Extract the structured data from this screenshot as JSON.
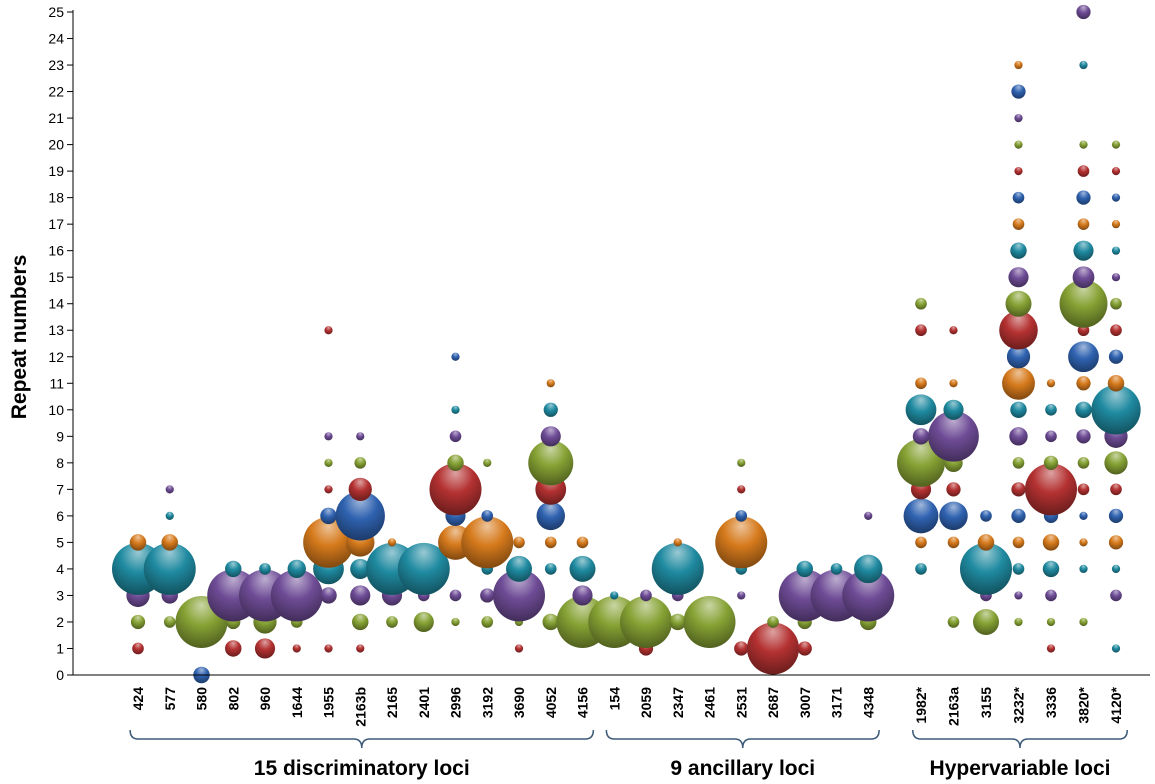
{
  "chart_data": {
    "type": "scatter",
    "subtype": "bubble",
    "ylabel": "Repeat numbers",
    "ylim": [
      0,
      25
    ],
    "yticks": [
      0,
      1,
      2,
      3,
      4,
      5,
      6,
      7,
      8,
      9,
      10,
      11,
      12,
      13,
      14,
      15,
      16,
      17,
      18,
      19,
      20,
      21,
      22,
      23,
      24,
      25
    ],
    "grid": false,
    "legend": "none",
    "palette": {
      "teal": "#1f8aa0",
      "orange": "#d67a1c",
      "purple": "#6e4c96",
      "green": "#86a234",
      "red": "#b43131",
      "blue": "#2f62b0"
    },
    "groups": [
      {
        "label": "15 discriminatory loci",
        "loci": [
          "424",
          "577",
          "580",
          "802",
          "960",
          "1644",
          "1955",
          "2163b",
          "2165",
          "2401",
          "2996",
          "3192",
          "3690",
          "4052",
          "4156"
        ]
      },
      {
        "label": "9 ancillary loci",
        "loci": [
          "154",
          "2059",
          "2347",
          "2461",
          "2531",
          "2687",
          "3007",
          "3171",
          "4348"
        ]
      },
      {
        "label": "Hypervariable loci",
        "loci": [
          "1982*",
          "2163a",
          "3155",
          "3232*",
          "3336",
          "3820*",
          "4120*"
        ]
      }
    ],
    "loci": [
      {
        "name": "424",
        "points": [
          [
            1,
            2,
            "red"
          ],
          [
            2,
            3,
            "green"
          ],
          [
            3,
            8,
            "purple"
          ],
          [
            4,
            40,
            "teal"
          ],
          [
            5,
            4,
            "orange"
          ]
        ]
      },
      {
        "name": "577",
        "points": [
          [
            2,
            2,
            "green"
          ],
          [
            3,
            4,
            "purple"
          ],
          [
            4,
            40,
            "teal"
          ],
          [
            5,
            4,
            "orange"
          ],
          [
            6,
            1,
            "teal"
          ],
          [
            7,
            1,
            "purple"
          ]
        ]
      },
      {
        "name": "580",
        "points": [
          [
            0,
            4,
            "blue"
          ],
          [
            2,
            40,
            "green"
          ]
        ]
      },
      {
        "name": "802",
        "points": [
          [
            1,
            4,
            "red"
          ],
          [
            2,
            3,
            "green"
          ],
          [
            3,
            40,
            "purple"
          ],
          [
            4,
            4,
            "teal"
          ]
        ]
      },
      {
        "name": "960",
        "points": [
          [
            1,
            6,
            "red"
          ],
          [
            2,
            8,
            "green"
          ],
          [
            3,
            40,
            "purple"
          ],
          [
            4,
            2,
            "teal"
          ]
        ]
      },
      {
        "name": "1644",
        "points": [
          [
            1,
            1,
            "red"
          ],
          [
            2,
            2,
            "green"
          ],
          [
            3,
            40,
            "purple"
          ],
          [
            4,
            5,
            "teal"
          ]
        ]
      },
      {
        "name": "1955",
        "points": [
          [
            1,
            1,
            "red"
          ],
          [
            3,
            4,
            "purple"
          ],
          [
            4,
            14,
            "teal"
          ],
          [
            5,
            38,
            "orange"
          ],
          [
            6,
            4,
            "blue"
          ],
          [
            7,
            1,
            "red"
          ],
          [
            8,
            1,
            "green"
          ],
          [
            9,
            1,
            "purple"
          ],
          [
            13,
            1,
            "red"
          ]
        ]
      },
      {
        "name": "2163b",
        "points": [
          [
            1,
            1,
            "red"
          ],
          [
            2,
            4,
            "green"
          ],
          [
            3,
            6,
            "purple"
          ],
          [
            4,
            6,
            "teal"
          ],
          [
            5,
            12,
            "orange"
          ],
          [
            6,
            36,
            "blue"
          ],
          [
            7,
            8,
            "red"
          ],
          [
            8,
            2,
            "green"
          ],
          [
            9,
            1,
            "purple"
          ]
        ]
      },
      {
        "name": "2165",
        "points": [
          [
            2,
            2,
            "green"
          ],
          [
            3,
            6,
            "purple"
          ],
          [
            4,
            40,
            "teal"
          ],
          [
            5,
            1,
            "orange"
          ]
        ]
      },
      {
        "name": "2401",
        "points": [
          [
            2,
            6,
            "green"
          ],
          [
            3,
            2,
            "purple"
          ],
          [
            4,
            40,
            "teal"
          ]
        ]
      },
      {
        "name": "2996",
        "points": [
          [
            2,
            1,
            "green"
          ],
          [
            3,
            2,
            "purple"
          ],
          [
            5,
            18,
            "orange"
          ],
          [
            6,
            6,
            "blue"
          ],
          [
            7,
            40,
            "red"
          ],
          [
            8,
            4,
            "green"
          ],
          [
            9,
            2,
            "purple"
          ],
          [
            10,
            1,
            "teal"
          ],
          [
            12,
            1,
            "blue"
          ]
        ]
      },
      {
        "name": "3192",
        "points": [
          [
            2,
            2,
            "green"
          ],
          [
            3,
            3,
            "purple"
          ],
          [
            4,
            2,
            "teal"
          ],
          [
            5,
            40,
            "orange"
          ],
          [
            6,
            2,
            "blue"
          ],
          [
            8,
            1,
            "green"
          ]
        ]
      },
      {
        "name": "3690",
        "points": [
          [
            1,
            1,
            "red"
          ],
          [
            2,
            1,
            "green"
          ],
          [
            3,
            40,
            "purple"
          ],
          [
            4,
            10,
            "teal"
          ],
          [
            5,
            2,
            "orange"
          ]
        ]
      },
      {
        "name": "4052",
        "points": [
          [
            2,
            4,
            "green"
          ],
          [
            4,
            2,
            "teal"
          ],
          [
            5,
            2,
            "orange"
          ],
          [
            6,
            12,
            "blue"
          ],
          [
            7,
            14,
            "red"
          ],
          [
            8,
            30,
            "green"
          ],
          [
            9,
            6,
            "purple"
          ],
          [
            10,
            3,
            "teal"
          ],
          [
            11,
            1,
            "orange"
          ]
        ]
      },
      {
        "name": "4156",
        "points": [
          [
            2,
            40,
            "green"
          ],
          [
            3,
            6,
            "purple"
          ],
          [
            4,
            10,
            "teal"
          ],
          [
            5,
            2,
            "orange"
          ]
        ]
      },
      {
        "name": "154",
        "points": [
          [
            2,
            40,
            "green"
          ],
          [
            3,
            1,
            "teal"
          ]
        ]
      },
      {
        "name": "2059",
        "points": [
          [
            1,
            3,
            "red"
          ],
          [
            2,
            40,
            "green"
          ],
          [
            3,
            2,
            "purple"
          ]
        ]
      },
      {
        "name": "2347",
        "points": [
          [
            2,
            4,
            "green"
          ],
          [
            3,
            2,
            "purple"
          ],
          [
            4,
            40,
            "teal"
          ],
          [
            5,
            1,
            "orange"
          ]
        ]
      },
      {
        "name": "2461",
        "points": [
          [
            2,
            40,
            "green"
          ]
        ]
      },
      {
        "name": "2531",
        "points": [
          [
            1,
            3,
            "red"
          ],
          [
            3,
            1,
            "purple"
          ],
          [
            4,
            2,
            "teal"
          ],
          [
            5,
            40,
            "orange"
          ],
          [
            6,
            2,
            "blue"
          ],
          [
            7,
            1,
            "red"
          ],
          [
            8,
            1,
            "green"
          ]
        ]
      },
      {
        "name": "2687",
        "points": [
          [
            1,
            40,
            "red"
          ],
          [
            2,
            2,
            "green"
          ]
        ]
      },
      {
        "name": "3007",
        "points": [
          [
            1,
            3,
            "red"
          ],
          [
            2,
            3,
            "green"
          ],
          [
            3,
            40,
            "purple"
          ],
          [
            4,
            4,
            "teal"
          ]
        ]
      },
      {
        "name": "3171",
        "points": [
          [
            3,
            40,
            "purple"
          ],
          [
            4,
            2,
            "teal"
          ]
        ]
      },
      {
        "name": "4348",
        "points": [
          [
            2,
            4,
            "green"
          ],
          [
            3,
            40,
            "purple"
          ],
          [
            4,
            12,
            "teal"
          ],
          [
            6,
            1,
            "purple"
          ]
        ]
      },
      {
        "name": "1982*",
        "points": [
          [
            4,
            2,
            "teal"
          ],
          [
            5,
            2,
            "orange"
          ],
          [
            6,
            18,
            "blue"
          ],
          [
            7,
            6,
            "red"
          ],
          [
            8,
            34,
            "green"
          ],
          [
            9,
            4,
            "purple"
          ],
          [
            10,
            14,
            "teal"
          ],
          [
            11,
            2,
            "orange"
          ],
          [
            13,
            2,
            "red"
          ],
          [
            14,
            2,
            "green"
          ]
        ]
      },
      {
        "name": "2163a",
        "points": [
          [
            2,
            2,
            "green"
          ],
          [
            5,
            2,
            "orange"
          ],
          [
            6,
            12,
            "blue"
          ],
          [
            7,
            3,
            "red"
          ],
          [
            8,
            5,
            "green"
          ],
          [
            9,
            38,
            "purple"
          ],
          [
            10,
            6,
            "teal"
          ],
          [
            11,
            1,
            "orange"
          ],
          [
            13,
            1,
            "red"
          ]
        ]
      },
      {
        "name": "3155",
        "points": [
          [
            2,
            10,
            "green"
          ],
          [
            3,
            2,
            "purple"
          ],
          [
            4,
            40,
            "teal"
          ],
          [
            5,
            4,
            "orange"
          ],
          [
            6,
            2,
            "blue"
          ]
        ]
      },
      {
        "name": "3232*",
        "points": [
          [
            2,
            1,
            "green"
          ],
          [
            3,
            1,
            "purple"
          ],
          [
            4,
            2,
            "teal"
          ],
          [
            5,
            2,
            "orange"
          ],
          [
            6,
            3,
            "blue"
          ],
          [
            7,
            3,
            "red"
          ],
          [
            8,
            2,
            "green"
          ],
          [
            9,
            5,
            "purple"
          ],
          [
            10,
            4,
            "teal"
          ],
          [
            11,
            16,
            "orange"
          ],
          [
            12,
            8,
            "blue"
          ],
          [
            13,
            22,
            "red"
          ],
          [
            14,
            10,
            "green"
          ],
          [
            15,
            6,
            "purple"
          ],
          [
            16,
            4,
            "teal"
          ],
          [
            17,
            2,
            "orange"
          ],
          [
            18,
            2,
            "blue"
          ],
          [
            19,
            1,
            "red"
          ],
          [
            20,
            1,
            "green"
          ],
          [
            21,
            1,
            "purple"
          ],
          [
            22,
            3,
            "blue"
          ],
          [
            23,
            1,
            "orange"
          ]
        ]
      },
      {
        "name": "3336",
        "points": [
          [
            1,
            1,
            "red"
          ],
          [
            2,
            1,
            "green"
          ],
          [
            3,
            2,
            "purple"
          ],
          [
            4,
            4,
            "teal"
          ],
          [
            5,
            4,
            "orange"
          ],
          [
            6,
            3,
            "blue"
          ],
          [
            7,
            40,
            "red"
          ],
          [
            8,
            3,
            "green"
          ],
          [
            9,
            2,
            "purple"
          ],
          [
            10,
            2,
            "teal"
          ],
          [
            11,
            1,
            "orange"
          ]
        ]
      },
      {
        "name": "3820*",
        "points": [
          [
            2,
            1,
            "green"
          ],
          [
            4,
            1,
            "teal"
          ],
          [
            5,
            1,
            "orange"
          ],
          [
            6,
            1,
            "blue"
          ],
          [
            7,
            2,
            "red"
          ],
          [
            8,
            2,
            "green"
          ],
          [
            9,
            3,
            "purple"
          ],
          [
            10,
            4,
            "teal"
          ],
          [
            11,
            3,
            "orange"
          ],
          [
            12,
            14,
            "blue"
          ],
          [
            13,
            2,
            "red"
          ],
          [
            14,
            34,
            "green"
          ],
          [
            15,
            7,
            "purple"
          ],
          [
            16,
            6,
            "teal"
          ],
          [
            17,
            2,
            "orange"
          ],
          [
            18,
            3,
            "blue"
          ],
          [
            19,
            2,
            "red"
          ],
          [
            20,
            1,
            "green"
          ],
          [
            23,
            1,
            "teal"
          ],
          [
            25,
            3,
            "purple"
          ]
        ]
      },
      {
        "name": "4120*",
        "points": [
          [
            1,
            1,
            "teal"
          ],
          [
            3,
            2,
            "purple"
          ],
          [
            4,
            1,
            "teal"
          ],
          [
            5,
            3,
            "orange"
          ],
          [
            6,
            3,
            "blue"
          ],
          [
            7,
            2,
            "red"
          ],
          [
            8,
            8,
            "green"
          ],
          [
            9,
            8,
            "purple"
          ],
          [
            10,
            36,
            "teal"
          ],
          [
            11,
            4,
            "orange"
          ],
          [
            12,
            3,
            "blue"
          ],
          [
            13,
            2,
            "red"
          ],
          [
            14,
            2,
            "green"
          ],
          [
            15,
            1,
            "purple"
          ],
          [
            16,
            1,
            "teal"
          ],
          [
            17,
            1,
            "orange"
          ],
          [
            18,
            1,
            "blue"
          ],
          [
            19,
            1,
            "red"
          ],
          [
            20,
            1,
            "green"
          ]
        ]
      }
    ]
  }
}
